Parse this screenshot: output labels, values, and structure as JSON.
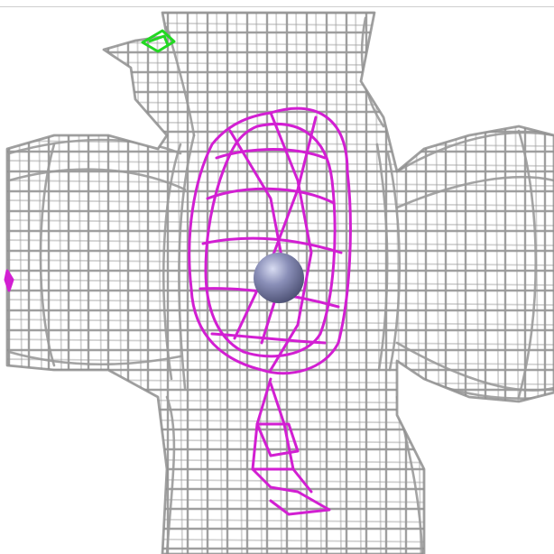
{
  "scene": {
    "background": "#ffffff",
    "mesh_colors": {
      "density_mesh": "#9a9a9a",
      "difference_mesh_positive": "#d21fd2",
      "difference_mesh_small": "#22d822",
      "atom_sphere": "#8a8fb8"
    },
    "elements": [
      "density-mesh",
      "difference-mesh",
      "small-green-mesh",
      "atom-sphere"
    ]
  }
}
